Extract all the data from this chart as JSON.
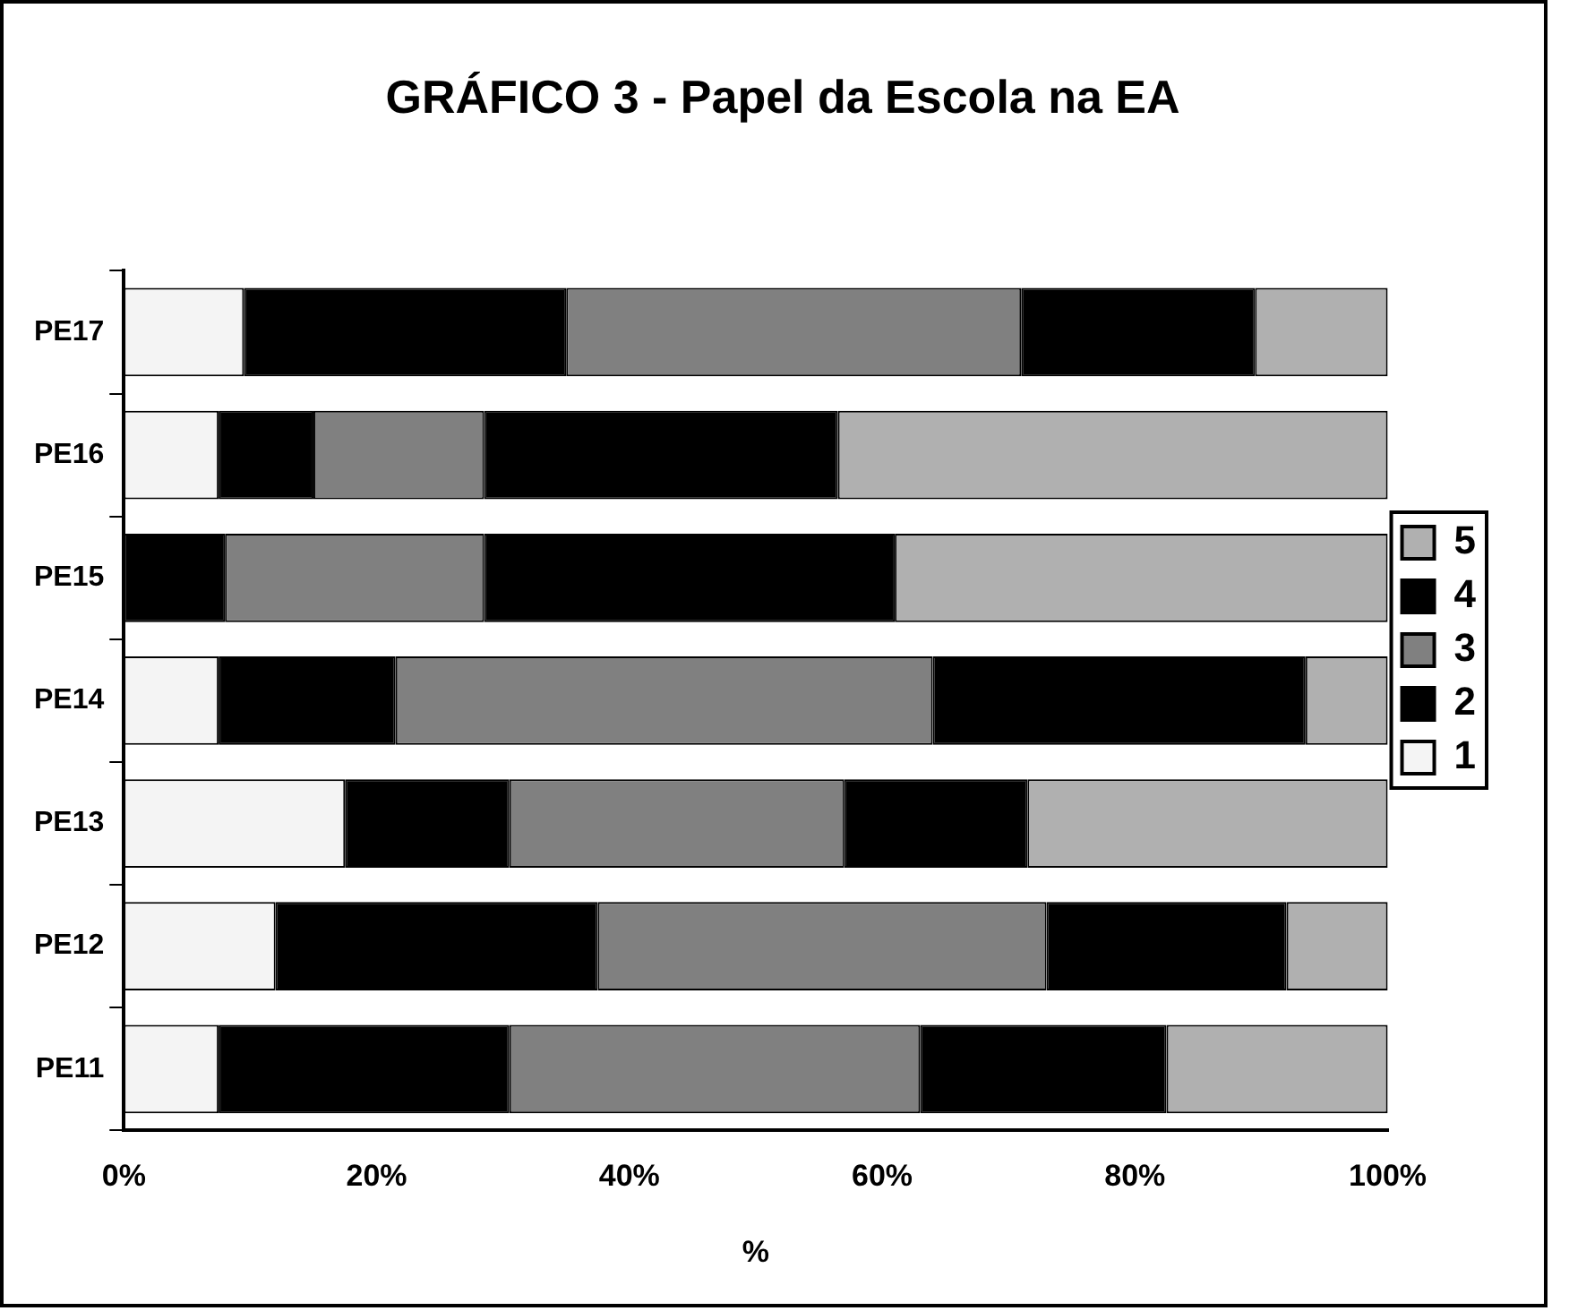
{
  "chart_data": {
    "type": "bar",
    "orientation": "horizontal",
    "stacked": true,
    "title": "GRÁFICO 3 - Papel da Escola na EA",
    "xlabel": "%",
    "categories": [
      "PE17",
      "PE16",
      "PE15",
      "PE14",
      "PE13",
      "PE12",
      "PE11"
    ],
    "series": [
      {
        "name": "1",
        "color": "#f4f4f4",
        "values": [
          9.5,
          7.5,
          0,
          7.5,
          17.5,
          12,
          7.5
        ]
      },
      {
        "name": "2",
        "color": "#000000",
        "values": [
          25.5,
          7.5,
          8,
          14,
          13,
          25.5,
          23
        ]
      },
      {
        "name": "3",
        "color": "#808080",
        "values": [
          36,
          13.5,
          20.5,
          42.5,
          26.5,
          35.5,
          32.5
        ]
      },
      {
        "name": "4",
        "color": "#000000",
        "values": [
          18.5,
          28,
          32.5,
          29.5,
          14.5,
          19,
          19.5
        ]
      },
      {
        "name": "5",
        "color": "#b0b0b0",
        "values": [
          10.5,
          43.5,
          39,
          6.5,
          28.5,
          8,
          17.5
        ]
      }
    ],
    "xlim": [
      0,
      100
    ],
    "xticks": [
      {
        "value": 0,
        "label": "0%"
      },
      {
        "value": 20,
        "label": "20%"
      },
      {
        "value": 40,
        "label": "40%"
      },
      {
        "value": 60,
        "label": "60%"
      },
      {
        "value": 80,
        "label": "80%"
      },
      {
        "value": 100,
        "label": "100%"
      }
    ],
    "grid": false,
    "legend": "right"
  }
}
